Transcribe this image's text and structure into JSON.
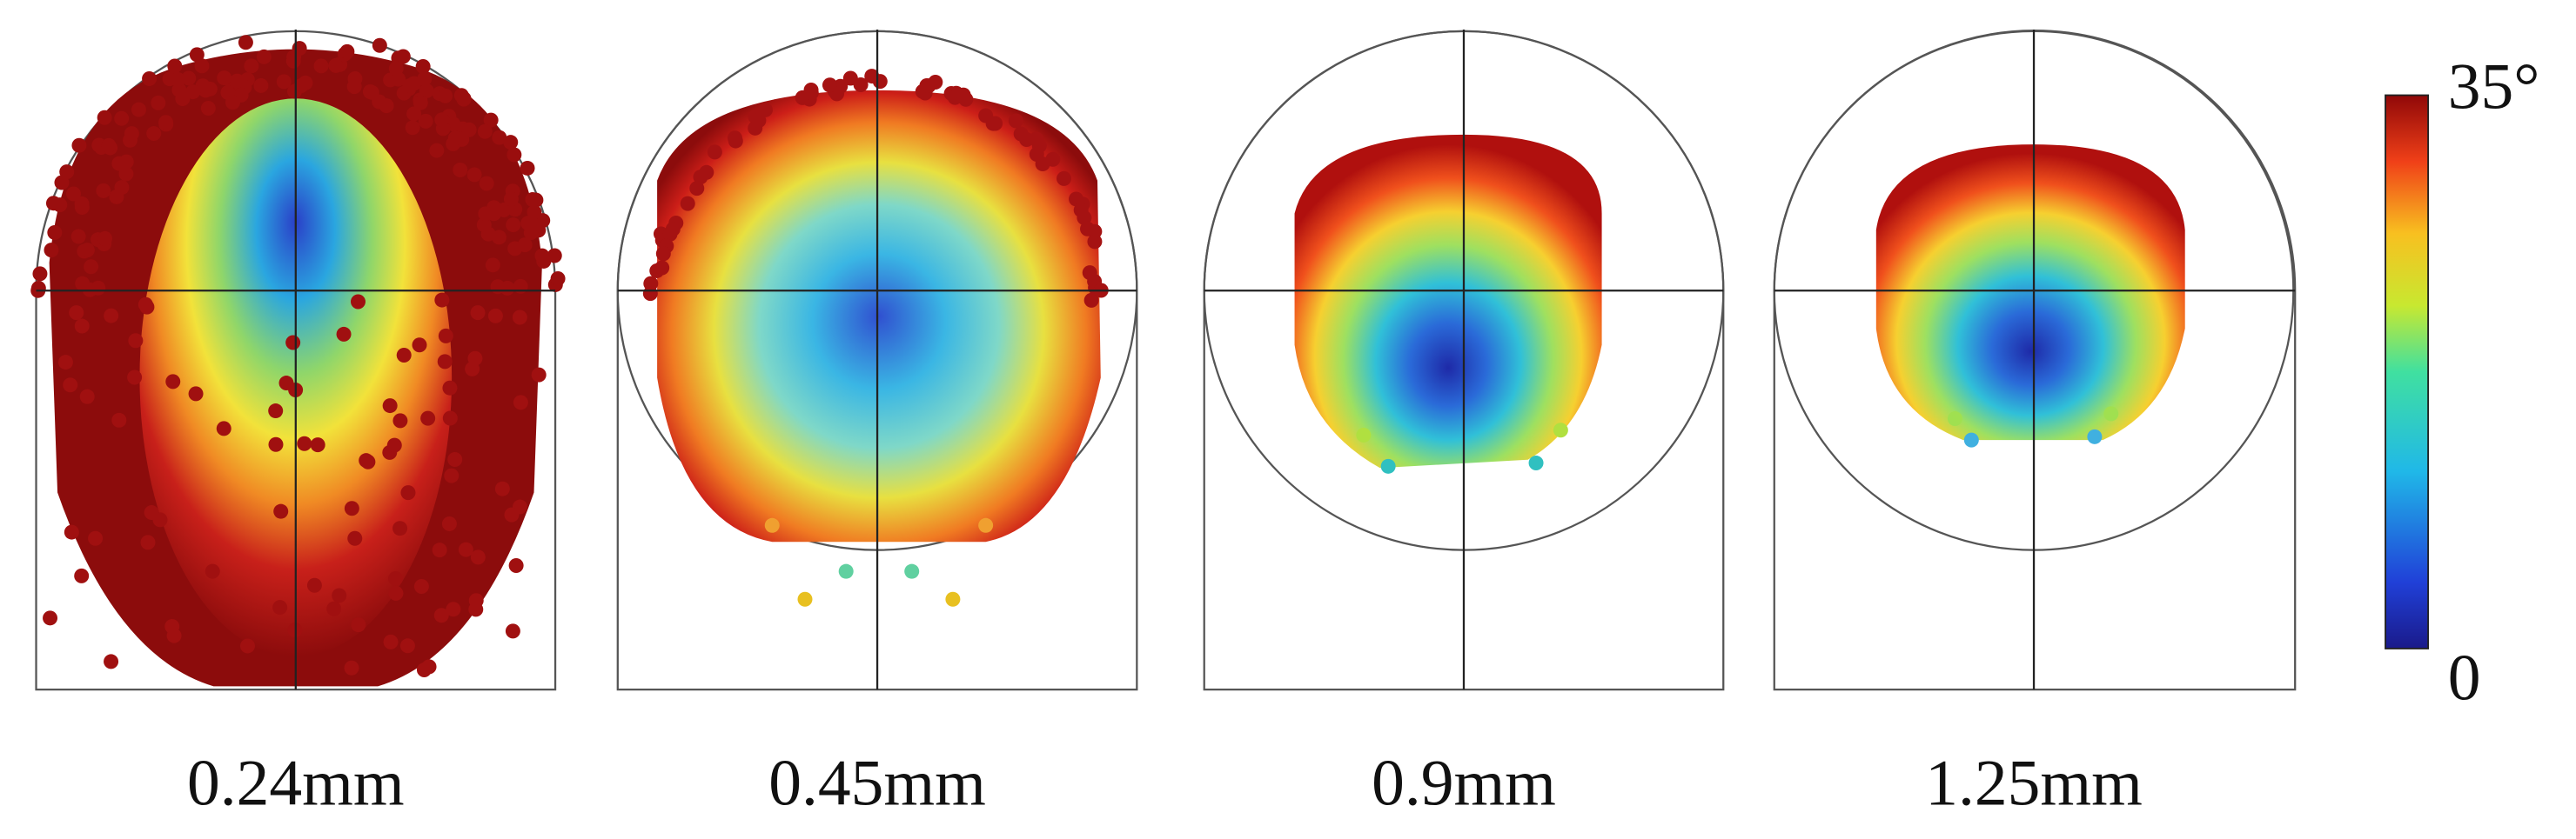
{
  "panels": [
    {
      "label": "0.24mm"
    },
    {
      "label": "0.45mm"
    },
    {
      "label": "0.9mm"
    },
    {
      "label": "1.25mm"
    }
  ],
  "colorbar": {
    "max_label": "35°",
    "min_label": "0"
  }
}
